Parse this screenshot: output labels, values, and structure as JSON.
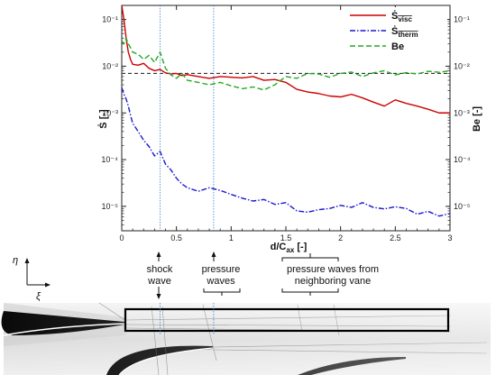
{
  "chart_data": {
    "type": "line",
    "xlabel": "d/C",
    "xlabel_sub": "ax",
    "xlabel_unit": " [-]",
    "ylabel_left": "Ṡ [-]",
    "ylabel_right": "Be [-]",
    "xlim": [
      0,
      3
    ],
    "ylim_left": [
      3e-06,
      0.2
    ],
    "ylim_right": [
      3e-06,
      0.2
    ],
    "yscale": "log",
    "legend_position": "top-right",
    "x_ticks": [
      "0",
      "0.5",
      "1",
      "1.5",
      "2",
      "2.5",
      "3"
    ],
    "y_ticks_left": [
      "10⁻⁵",
      "10⁻⁴",
      "10⁻³",
      "10⁻²",
      "10⁻¹"
    ],
    "y_ticks_right": [
      "10⁻⁵",
      "10⁻⁴",
      "10⁻³",
      "10⁻²",
      "10⁻¹"
    ],
    "reference_lines": {
      "horizontal_dashed_y": 0.007,
      "vertical_dotted_x": [
        0.35,
        0.84
      ]
    },
    "series": [
      {
        "name": "Ṡ",
        "name_sub": "visc",
        "color": "#cc0000",
        "style": "solid",
        "x": [
          0,
          0.02,
          0.04,
          0.06,
          0.08,
          0.1,
          0.15,
          0.2,
          0.25,
          0.3,
          0.35,
          0.4,
          0.45,
          0.5,
          0.55,
          0.6,
          0.7,
          0.8,
          0.9,
          1.0,
          1.1,
          1.2,
          1.3,
          1.4,
          1.5,
          1.6,
          1.7,
          1.8,
          1.9,
          2.0,
          2.1,
          2.2,
          2.3,
          2.4,
          2.5,
          2.6,
          2.7,
          2.8,
          2.9,
          3.0
        ],
        "values": [
          0.2,
          0.1,
          0.04,
          0.02,
          0.014,
          0.011,
          0.0105,
          0.0115,
          0.009,
          0.008,
          0.0085,
          0.0072,
          0.0068,
          0.007,
          0.0063,
          0.0066,
          0.006,
          0.0055,
          0.006,
          0.0058,
          0.0056,
          0.006,
          0.005,
          0.0052,
          0.0045,
          0.0032,
          0.0028,
          0.0026,
          0.0023,
          0.0022,
          0.0025,
          0.0021,
          0.0017,
          0.0014,
          0.0019,
          0.0016,
          0.0014,
          0.0012,
          0.001,
          0.001
        ]
      },
      {
        "name": "Ṡ",
        "name_sub": "therm",
        "color": "#1a1acc",
        "style": "dash-dot",
        "x": [
          0,
          0.02,
          0.04,
          0.06,
          0.08,
          0.1,
          0.15,
          0.2,
          0.25,
          0.3,
          0.35,
          0.4,
          0.45,
          0.5,
          0.55,
          0.6,
          0.7,
          0.8,
          0.9,
          1.0,
          1.1,
          1.2,
          1.3,
          1.4,
          1.5,
          1.6,
          1.7,
          1.8,
          1.9,
          2.0,
          2.1,
          2.2,
          2.3,
          2.4,
          2.5,
          2.6,
          2.7,
          2.8,
          2.9,
          3.0
        ],
        "values": [
          0.0035,
          0.0025,
          0.002,
          0.0014,
          0.0009,
          0.0006,
          0.0004,
          0.00026,
          0.00019,
          0.00012,
          0.00015,
          8e-05,
          6e-05,
          4e-05,
          3e-05,
          2.5e-05,
          2.1e-05,
          2.5e-05,
          2.2e-05,
          1.8e-05,
          1.5e-05,
          1.3e-05,
          1.4e-05,
          1.1e-05,
          1.2e-05,
          8e-06,
          7.5e-06,
          8.5e-06,
          9e-06,
          1.05e-05,
          9.5e-06,
          1.2e-05,
          9.5e-06,
          8.8e-06,
          9.8e-06,
          9e-06,
          6.8e-06,
          7.8e-06,
          6.2e-06,
          7e-06
        ]
      },
      {
        "name": "Be",
        "color": "#22aa22",
        "style": "dashed",
        "x": [
          0,
          0.02,
          0.04,
          0.06,
          0.08,
          0.1,
          0.15,
          0.2,
          0.25,
          0.3,
          0.35,
          0.4,
          0.45,
          0.5,
          0.55,
          0.6,
          0.7,
          0.8,
          0.9,
          1.0,
          1.1,
          1.2,
          1.3,
          1.4,
          1.5,
          1.6,
          1.7,
          1.8,
          1.9,
          2.0,
          2.1,
          2.2,
          2.3,
          2.4,
          2.5,
          2.6,
          2.7,
          2.8,
          2.9,
          3.0
        ],
        "values": [
          0.035,
          0.03,
          0.04,
          0.03,
          0.025,
          0.02,
          0.018,
          0.014,
          0.017,
          0.012,
          0.02,
          0.009,
          0.0065,
          0.0055,
          0.007,
          0.005,
          0.0045,
          0.004,
          0.0045,
          0.0038,
          0.0033,
          0.0036,
          0.0031,
          0.004,
          0.006,
          0.0055,
          0.007,
          0.0068,
          0.0058,
          0.007,
          0.0075,
          0.006,
          0.0072,
          0.008,
          0.0065,
          0.0073,
          0.0068,
          0.0078,
          0.0074,
          0.008
        ]
      }
    ]
  },
  "annotations": {
    "shock_line1": "shock",
    "shock_line2": "wave",
    "pressure_line1": "pressure",
    "pressure_line2": "waves",
    "neighbor_line1": "pressure waves from",
    "neighbor_line2": "neighboring vane",
    "eta_symbol": "η",
    "xi_symbol": "ξ"
  }
}
